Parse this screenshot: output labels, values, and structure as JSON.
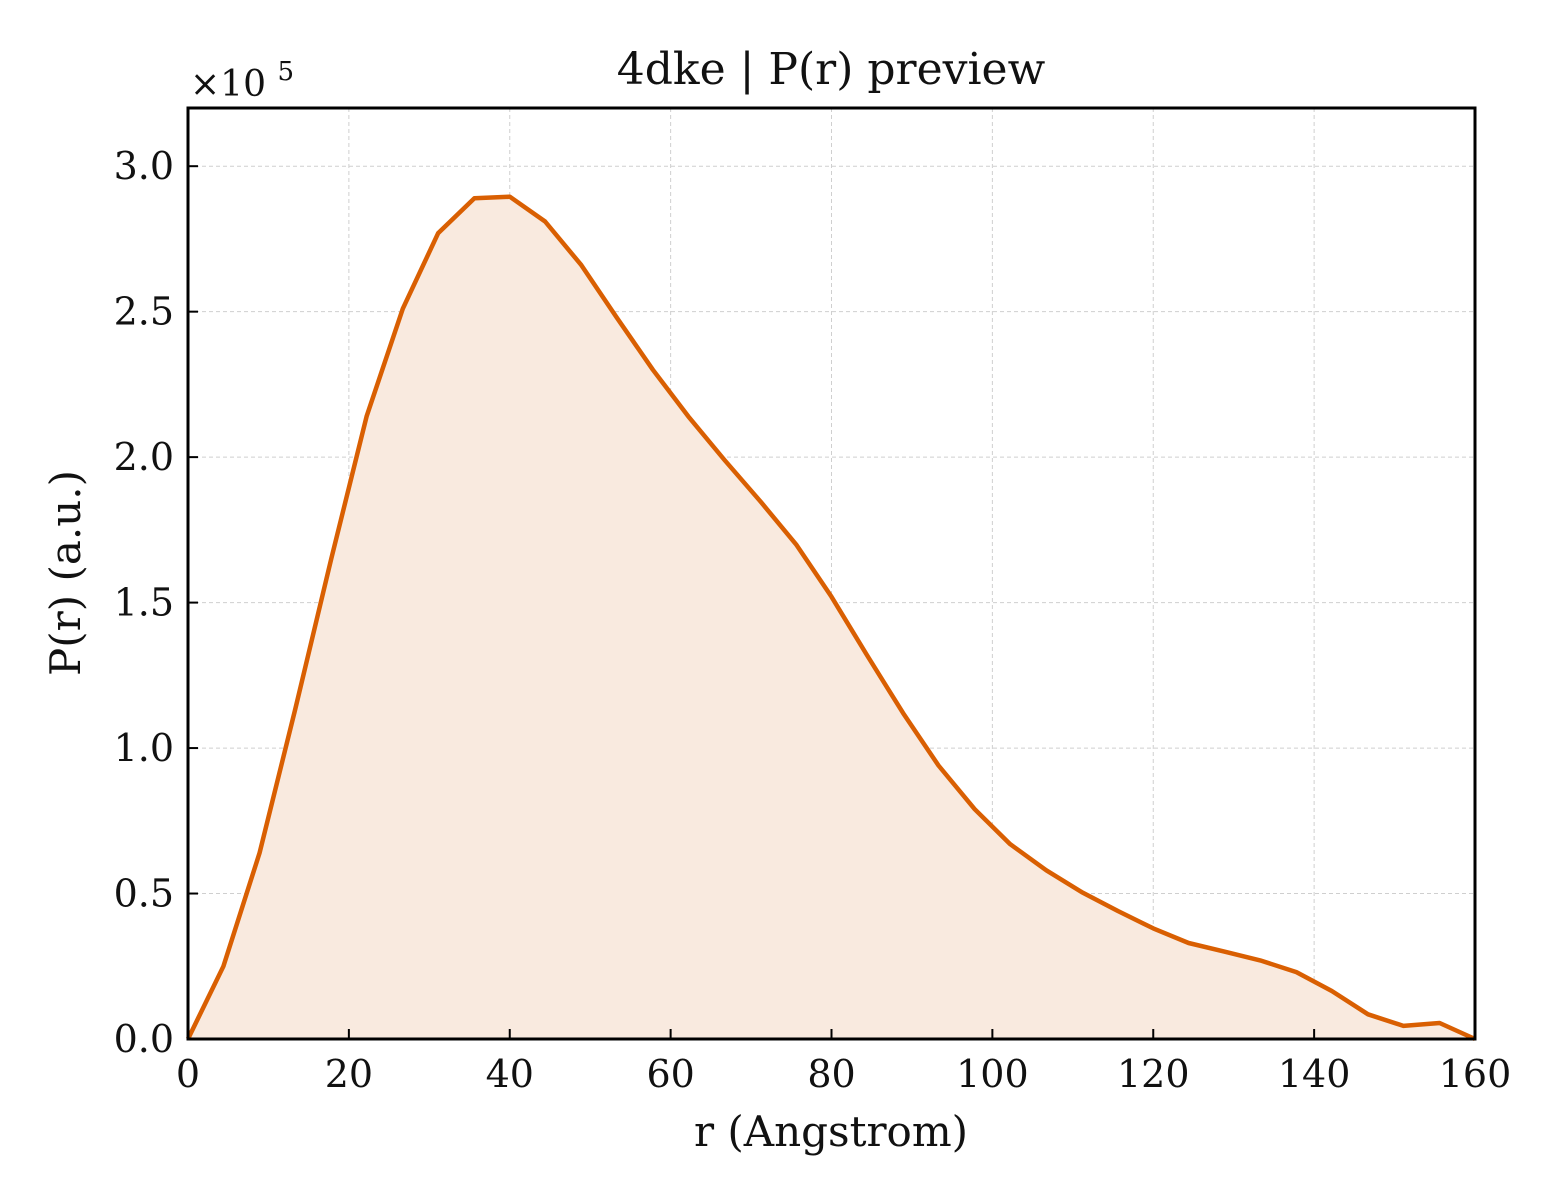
{
  "chart_data": {
    "type": "area",
    "title": "4dke | P(r) preview",
    "xlabel": "r (Angstrom)",
    "ylabel": "P(r) (a.u.)",
    "y_multiplier_prefix": "×10",
    "y_multiplier_exponent": "5",
    "xlim": [
      0,
      160
    ],
    "ylim": [
      0,
      3.2
    ],
    "grid": true,
    "legend": "none",
    "xticks": [
      0,
      20,
      40,
      60,
      80,
      100,
      120,
      140,
      160
    ],
    "xtick_labels": [
      "0",
      "20",
      "40",
      "60",
      "80",
      "100",
      "120",
      "140",
      "160"
    ],
    "yticks": [
      0,
      0.5,
      1.0,
      1.5,
      2.0,
      2.5,
      3.0
    ],
    "ytick_labels": [
      "0.0",
      "0.5",
      "1.0",
      "1.5",
      "2.0",
      "2.5",
      "3.0"
    ],
    "colors": {
      "line": "#d95f02",
      "fill": "#f9eadf"
    },
    "series": [
      {
        "x": [
          0,
          4.4,
          8.9,
          13.3,
          17.8,
          22.2,
          26.7,
          31.1,
          35.6,
          40.0,
          44.4,
          48.9,
          53.3,
          57.8,
          62.2,
          66.7,
          71.1,
          75.6,
          80.0,
          84.4,
          88.9,
          93.3,
          97.8,
          102.2,
          106.7,
          111.1,
          115.6,
          120.0,
          124.4,
          128.9,
          133.3,
          137.8,
          142.2,
          146.7,
          151.1,
          155.6,
          160.0
        ],
        "y": [
          0.0,
          0.25,
          0.64,
          1.13,
          1.65,
          2.14,
          2.51,
          2.77,
          2.89,
          2.895,
          2.81,
          2.66,
          2.48,
          2.3,
          2.14,
          1.99,
          1.85,
          1.7,
          1.52,
          1.32,
          1.12,
          0.94,
          0.79,
          0.67,
          0.58,
          0.505,
          0.44,
          0.38,
          0.33,
          0.3,
          0.27,
          0.23,
          0.165,
          0.085,
          0.045,
          0.055,
          0.0
        ]
      }
    ]
  }
}
